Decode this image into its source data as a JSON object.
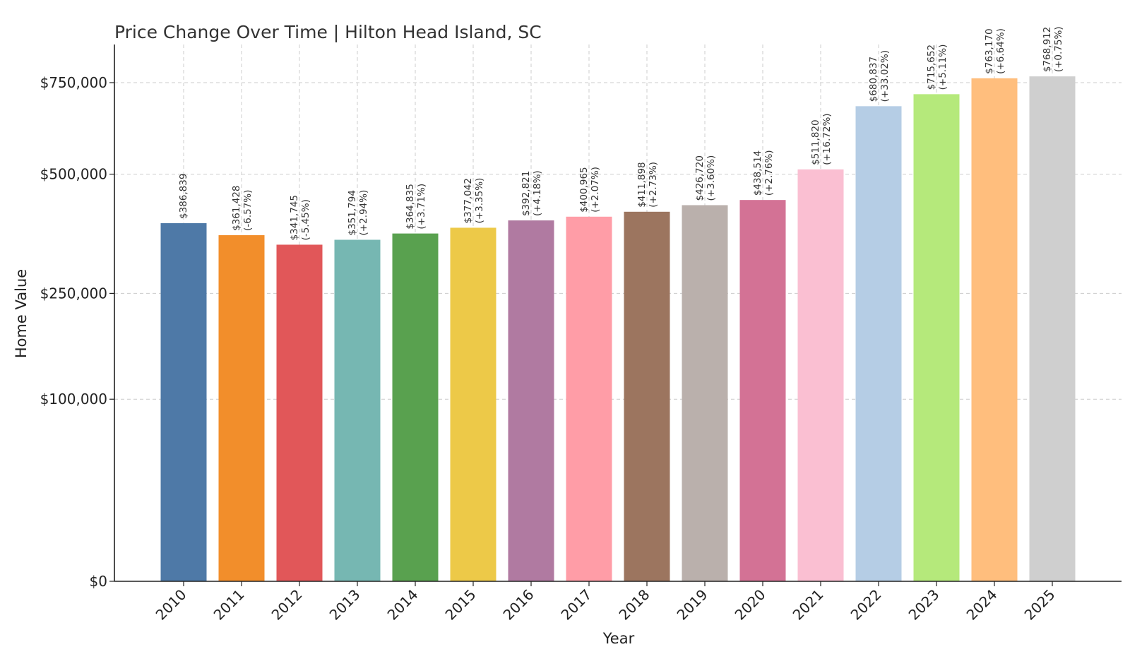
{
  "chart_data": {
    "type": "bar",
    "title": "Price Change Over Time | Hilton Head Island, SC",
    "xlabel": "Year",
    "ylabel": "Home Value",
    "ylim": [
      0,
      800000
    ],
    "yscale": "sqrt",
    "grid": true,
    "yticks": [
      0,
      100000,
      250000,
      500000,
      750000
    ],
    "ytick_labels": [
      "$0",
      "$100,000",
      "$250,000",
      "$500,000",
      "$750,000"
    ],
    "categories": [
      "2010",
      "2011",
      "2012",
      "2013",
      "2014",
      "2015",
      "2016",
      "2017",
      "2018",
      "2019",
      "2020",
      "2021",
      "2022",
      "2023",
      "2024",
      "2025"
    ],
    "values": [
      386839,
      361428,
      341745,
      351794,
      364835,
      377042,
      392821,
      400965,
      411898,
      426720,
      438514,
      511820,
      680837,
      715652,
      763170,
      768912
    ],
    "value_labels": [
      "$386,839",
      "$361,428",
      "$341,745",
      "$351,794",
      "$364,835",
      "$377,042",
      "$392,821",
      "$400,965",
      "$411,898",
      "$426,720",
      "$438,514",
      "$511,820",
      "$680,837",
      "$715,652",
      "$763,170",
      "$768,912"
    ],
    "change_labels": [
      "",
      "(-6.57%)",
      "(-5.45%)",
      "(+2.94%)",
      "(+3.71%)",
      "(+3.35%)",
      "(+4.18%)",
      "(+2.07%)",
      "(+2.73%)",
      "(+3.60%)",
      "(+2.76%)",
      "(+16.72%)",
      "(+33.02%)",
      "(+5.11%)",
      "(+6.64%)",
      "(+0.75%)"
    ],
    "colors": [
      "#4e79a7",
      "#f28e2b",
      "#e15759",
      "#76b7b2",
      "#59a14f",
      "#edc948",
      "#b07aa1",
      "#ff9da7",
      "#9c755f",
      "#bab0ac",
      "#d37295",
      "#fabfd2",
      "#b5cde5",
      "#b5e97b",
      "#ffbe7d",
      "#cfcfcf"
    ]
  }
}
